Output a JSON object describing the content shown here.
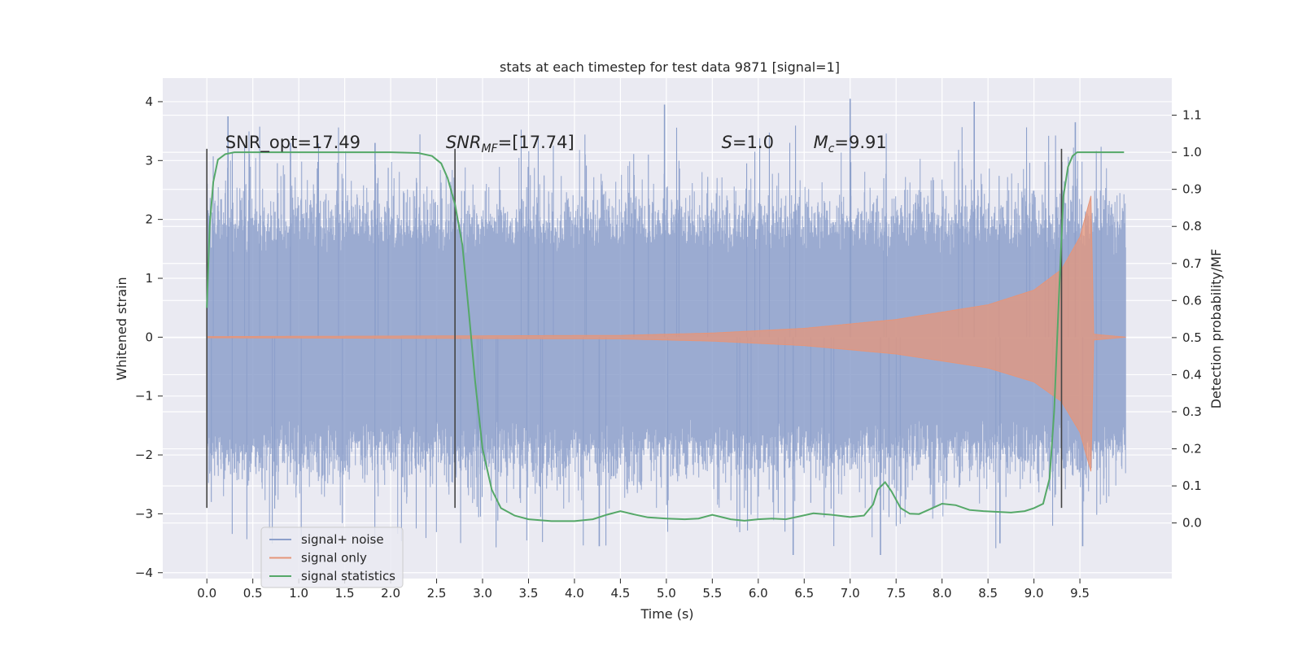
{
  "chart_data": {
    "type": "line",
    "title": "stats at each timestep for test data 9871 [signal=1]",
    "xlabel": "Time (s)",
    "ylabel": "Whitened strain",
    "y2label": "Detection probability/MF",
    "xlim": [
      -0.48,
      10.5
    ],
    "ylim": [
      -4.1,
      4.4
    ],
    "y2lim": [
      -0.15,
      1.2
    ],
    "x_ticks": [
      0.0,
      0.5,
      1.0,
      1.5,
      2.0,
      2.5,
      3.0,
      3.5,
      4.0,
      4.5,
      5.0,
      5.5,
      6.0,
      6.5,
      7.0,
      7.5,
      8.0,
      8.5,
      9.0,
      9.5
    ],
    "x_tick_labels": [
      "0.0",
      "0.5",
      "1.0",
      "1.5",
      "2.0",
      "2.5",
      "3.0",
      "3.5",
      "4.0",
      "4.5",
      "5.0",
      "5.5",
      "6.0",
      "6.5",
      "7.0",
      "7.5",
      "8.0",
      "8.5",
      "9.0",
      "9.5"
    ],
    "y_ticks": [
      4,
      3,
      2,
      1,
      0,
      -1,
      -2,
      -3,
      -4
    ],
    "y_tick_labels": [
      "4",
      "3",
      "2",
      "1",
      "0",
      "−1",
      "−2",
      "−3",
      "−4"
    ],
    "y2_ticks": [
      1.1,
      1.0,
      0.9,
      0.8,
      0.7,
      0.6,
      0.5,
      0.4,
      0.3,
      0.2,
      0.1,
      0.0
    ],
    "y2_tick_labels": [
      "1.1",
      "1.0",
      "0.9",
      "0.8",
      "0.7",
      "0.6",
      "0.5",
      "0.4",
      "0.3",
      "0.2",
      "0.1",
      "0.0"
    ],
    "grid": true,
    "legend_position": "lower-left",
    "legend": [
      "signal+ noise",
      "signal only",
      "signal statistics"
    ],
    "annotations": [
      {
        "text": "SNR_opt=17.49",
        "x": 0.2,
        "y": 3.2
      },
      {
        "text": "SNR_MF=[17.74]",
        "x": 2.6,
        "y": 3.2
      },
      {
        "text": "S=1.0",
        "x": 5.6,
        "y": 3.2
      },
      {
        "text": "M_c=9.91",
        "x": 6.6,
        "y": 3.2
      }
    ],
    "vertical_markers": [
      {
        "x": 0.0,
        "ymin": -2.9,
        "ymax": 3.2
      },
      {
        "x": 2.7,
        "ymin": -2.9,
        "ymax": 3.2
      },
      {
        "x": 9.3,
        "ymin": -2.9,
        "ymax": 3.2
      }
    ],
    "series": [
      {
        "name": "signal+ noise",
        "color": "#8da0cb",
        "x_range": [
          0.0,
          10.0
        ],
        "envelope_typical_abs": 2.0,
        "peak_samples": [
          {
            "x": 0.23,
            "y": 3.75
          },
          {
            "x": 0.91,
            "y": 3.3
          },
          {
            "x": 1.83,
            "y": 3.3
          },
          {
            "x": 4.98,
            "y": 3.95
          },
          {
            "x": 7.0,
            "y": 4.05
          },
          {
            "x": 8.35,
            "y": 4.0
          },
          {
            "x": 9.45,
            "y": 3.65
          },
          {
            "x": 6.38,
            "y": -3.7
          },
          {
            "x": 4.27,
            "y": -3.55
          },
          {
            "x": 8.63,
            "y": -3.5
          },
          {
            "x": 9.53,
            "y": -3.55
          },
          {
            "x": 7.33,
            "y": -3.7
          }
        ]
      },
      {
        "name": "signal only",
        "color": "#e5957a",
        "x_range": [
          0.0,
          10.0
        ],
        "merger_time": 9.65,
        "amplitude_samples": [
          {
            "x": 0.0,
            "y": 0.01
          },
          {
            "x": 4.5,
            "y": 0.03
          },
          {
            "x": 5.5,
            "y": 0.07
          },
          {
            "x": 6.5,
            "y": 0.15
          },
          {
            "x": 7.5,
            "y": 0.3
          },
          {
            "x": 8.5,
            "y": 0.55
          },
          {
            "x": 9.0,
            "y": 0.8
          },
          {
            "x": 9.3,
            "y": 1.15
          },
          {
            "x": 9.5,
            "y": 1.7
          },
          {
            "x": 9.62,
            "y": 2.4
          },
          {
            "x": 9.65,
            "y": 0.05
          },
          {
            "x": 10.0,
            "y": 0.0
          }
        ]
      },
      {
        "name": "signal statistics",
        "color": "#55a868",
        "axis": "right",
        "x": [
          0.0,
          0.03,
          0.07,
          0.12,
          0.2,
          0.3,
          0.5,
          1.0,
          1.5,
          2.0,
          2.3,
          2.45,
          2.55,
          2.62,
          2.7,
          2.78,
          2.85,
          2.92,
          3.0,
          3.1,
          3.2,
          3.35,
          3.5,
          3.75,
          4.0,
          4.2,
          4.35,
          4.5,
          4.65,
          4.8,
          5.0,
          5.2,
          5.35,
          5.5,
          5.7,
          5.85,
          6.0,
          6.15,
          6.3,
          6.45,
          6.6,
          6.8,
          7.0,
          7.15,
          7.25,
          7.3,
          7.38,
          7.45,
          7.55,
          7.65,
          7.75,
          7.85,
          8.0,
          8.15,
          8.3,
          8.45,
          8.6,
          8.75,
          8.9,
          9.0,
          9.1,
          9.17,
          9.22,
          9.27,
          9.32,
          9.37,
          9.42,
          9.47,
          9.52,
          9.6,
          9.75,
          9.9,
          9.98
        ],
        "values": [
          0.58,
          0.8,
          0.92,
          0.98,
          0.995,
          1.0,
          1.0,
          1.0,
          1.0,
          1.0,
          0.998,
          0.99,
          0.97,
          0.93,
          0.86,
          0.75,
          0.57,
          0.38,
          0.2,
          0.09,
          0.04,
          0.02,
          0.01,
          0.005,
          0.005,
          0.01,
          0.022,
          0.032,
          0.023,
          0.015,
          0.012,
          0.01,
          0.012,
          0.022,
          0.01,
          0.006,
          0.01,
          0.012,
          0.01,
          0.018,
          0.026,
          0.022,
          0.016,
          0.02,
          0.05,
          0.09,
          0.11,
          0.085,
          0.04,
          0.025,
          0.024,
          0.035,
          0.052,
          0.048,
          0.035,
          0.032,
          0.03,
          0.028,
          0.032,
          0.04,
          0.052,
          0.12,
          0.3,
          0.6,
          0.88,
          0.96,
          0.99,
          1.0,
          1.0,
          1.0,
          1.0,
          1.0,
          1.0
        ]
      }
    ]
  }
}
